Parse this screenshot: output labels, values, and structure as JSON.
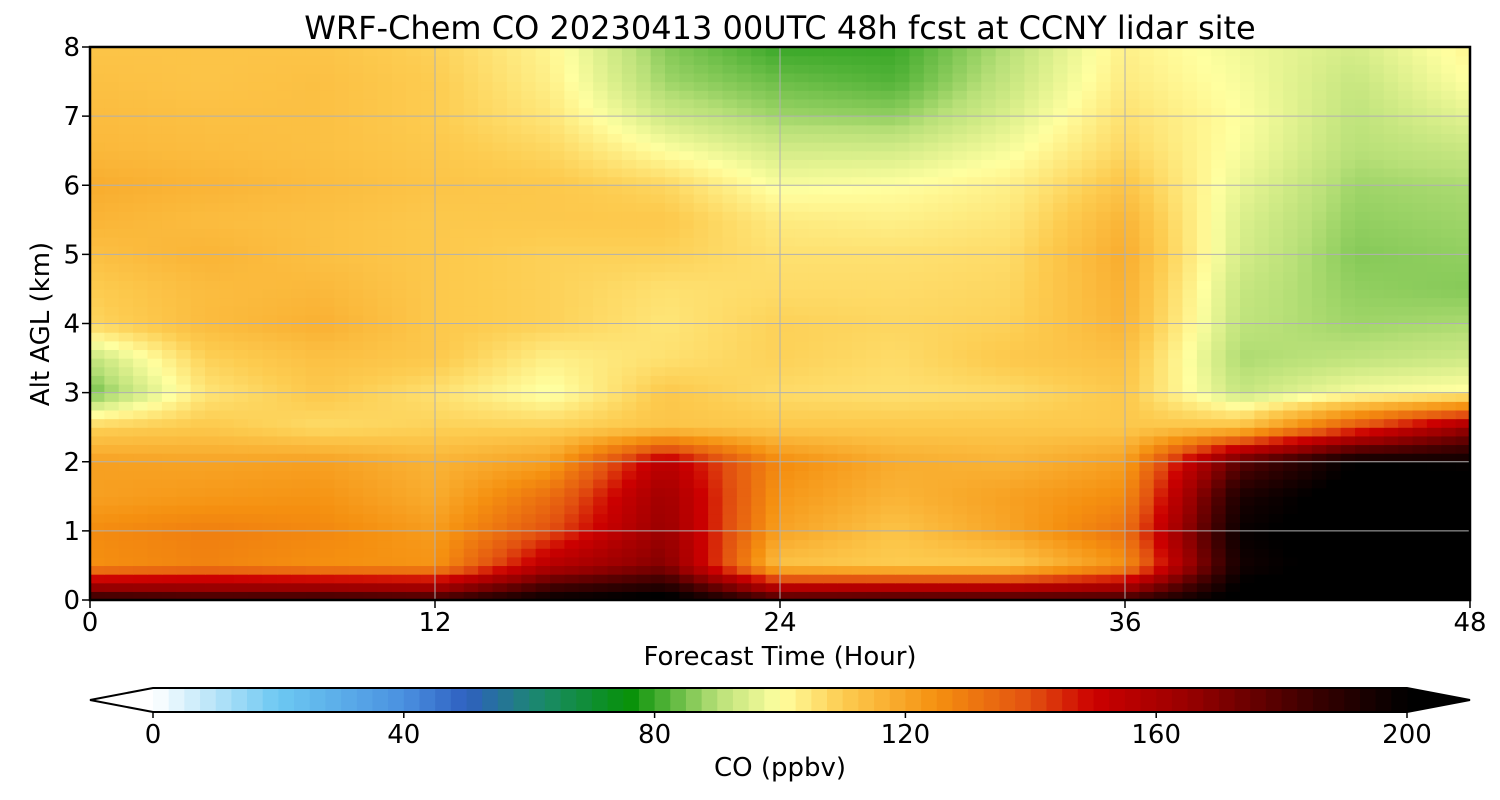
{
  "chart_data": {
    "type": "heatmap",
    "title": "WRF-Chem CO  20230413 00UTC 48h fcst at CCNY lidar site",
    "xlabel": "Forecast Time (Hour)",
    "ylabel": "Alt AGL (km)",
    "xlim": [
      0,
      48
    ],
    "ylim": [
      0,
      8
    ],
    "xticks": [
      0,
      12,
      24,
      36,
      48
    ],
    "yticks": [
      0,
      1,
      2,
      3,
      4,
      5,
      6,
      7,
      8
    ],
    "grid": true,
    "x": [
      0,
      4,
      8,
      12,
      16,
      20,
      24,
      28,
      32,
      36,
      40,
      44,
      48
    ],
    "y": [
      0,
      0.5,
      1,
      1.5,
      2,
      2.5,
      3,
      3.5,
      4,
      4.5,
      5,
      5.5,
      6,
      6.5,
      7,
      7.5,
      8
    ],
    "z": [
      [
        190,
        187,
        188,
        185,
        200,
        205,
        183,
        185,
        185,
        185,
        205,
        205,
        200
      ],
      [
        125,
        128,
        125,
        124,
        157,
        170,
        112,
        110,
        110,
        124,
        195,
        205,
        205
      ],
      [
        126,
        129,
        127,
        122,
        140,
        165,
        120,
        112,
        120,
        132,
        198,
        205,
        205
      ],
      [
        121,
        123,
        124,
        118,
        133,
        163,
        123,
        116,
        121,
        126,
        193,
        205,
        205
      ],
      [
        121,
        120,
        121,
        116,
        121,
        156,
        126,
        118,
        116,
        121,
        178,
        200,
        198
      ],
      [
        109,
        111,
        107,
        109,
        109,
        112,
        111,
        111,
        111,
        111,
        113,
        140,
        165
      ],
      [
        84,
        105,
        111,
        106,
        99,
        111,
        107,
        106,
        107,
        111,
        92,
        99,
        101
      ],
      [
        91,
        109,
        113,
        111,
        103,
        106,
        109,
        107,
        111,
        113,
        89,
        91,
        93
      ],
      [
        108,
        114,
        117,
        111,
        109,
        105,
        109,
        108,
        109,
        116,
        91,
        88,
        89
      ],
      [
        110,
        114,
        115,
        111,
        109,
        106,
        107,
        107,
        108,
        117,
        92,
        87,
        86
      ],
      [
        113,
        116,
        113,
        111,
        109,
        109,
        106,
        106,
        107,
        118,
        94,
        86,
        87
      ],
      [
        116,
        114,
        113,
        111,
        111,
        111,
        104,
        103,
        105,
        116,
        95,
        87,
        88
      ],
      [
        118,
        116,
        114,
        112,
        111,
        108,
        99,
        100,
        103,
        112,
        97,
        88,
        89
      ],
      [
        115,
        114,
        113,
        111,
        108,
        100,
        94,
        94,
        99,
        108,
        99,
        90,
        92
      ],
      [
        114,
        113,
        113,
        110,
        105,
        93,
        88,
        87,
        95,
        106,
        100,
        91,
        96
      ],
      [
        113,
        112,
        113,
        110,
        103,
        88,
        84,
        82,
        92,
        104,
        99,
        92,
        100
      ],
      [
        112,
        112,
        112,
        109,
        102,
        86,
        80,
        80,
        90,
        103,
        98,
        94,
        102
      ]
    ],
    "colorbar": {
      "label": "CO  (ppbv)",
      "min": 0,
      "max": 200,
      "ticks": [
        0,
        40,
        80,
        120,
        160,
        200
      ],
      "extend": "both",
      "stops": [
        [
          0,
          "#ffffff"
        ],
        [
          20,
          "#6cc8f2"
        ],
        [
          40,
          "#4a90e0"
        ],
        [
          50,
          "#2f60c0"
        ],
        [
          62,
          "#1a8a6a"
        ],
        [
          76,
          "#079108"
        ],
        [
          90,
          "#b8e078"
        ],
        [
          100,
          "#ffffa0"
        ],
        [
          110,
          "#fdcc50"
        ],
        [
          125,
          "#f59010"
        ],
        [
          140,
          "#e25010"
        ],
        [
          150,
          "#cc0000"
        ],
        [
          165,
          "#990000"
        ],
        [
          185,
          "#3a0000"
        ],
        [
          200,
          "#000000"
        ]
      ]
    }
  }
}
